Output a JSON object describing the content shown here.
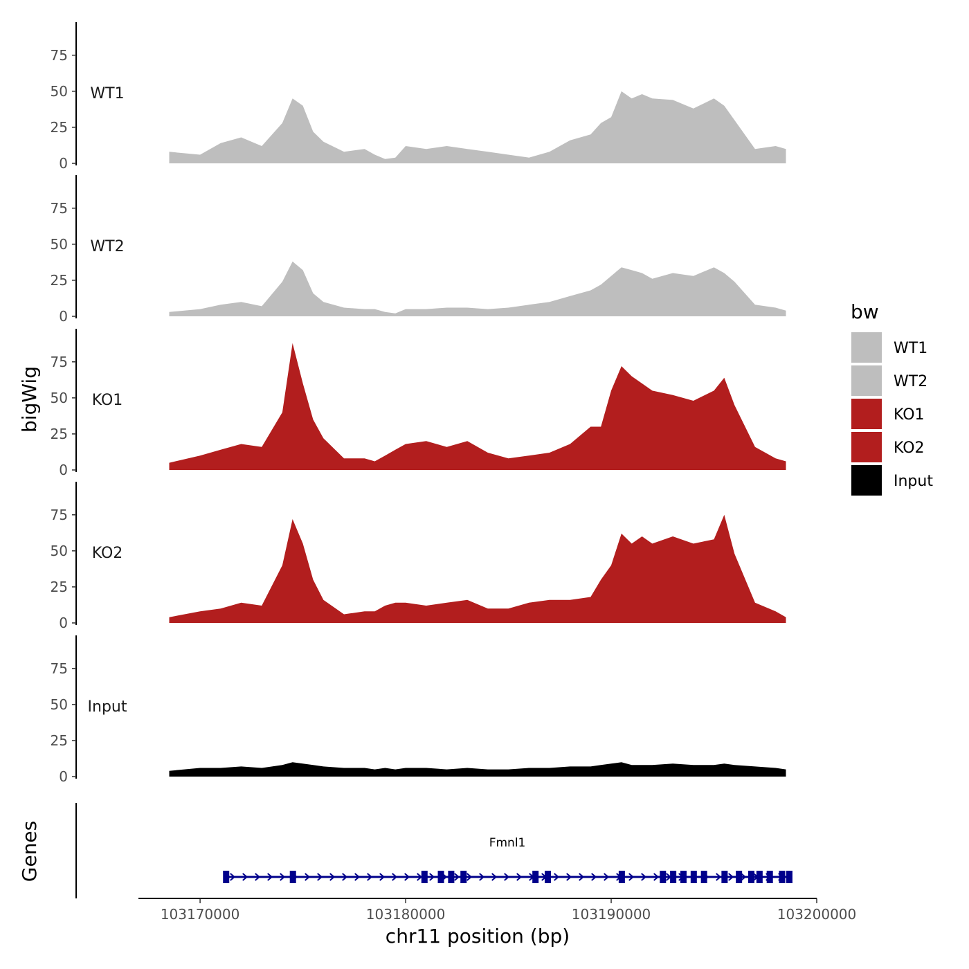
{
  "chart_data": {
    "type": "area",
    "xlabel": "chr11 position (bp)",
    "ylabel": "bigWig",
    "xlim": [
      103167000,
      103200000
    ],
    "x_ticks": [
      103170000,
      103180000,
      103190000,
      103200000
    ],
    "x_tick_labels": [
      "103170000",
      "103180000",
      "103190000",
      "103200000"
    ],
    "ylim": [
      0,
      95
    ],
    "y_ticks": [
      0,
      25,
      50,
      75
    ],
    "y_tick_labels": [
      "0",
      "25",
      "50",
      "75"
    ],
    "legend": {
      "title": "bw",
      "position": "right",
      "entries": [
        {
          "label": "WT1",
          "color": "#BEBEBE"
        },
        {
          "label": "WT2",
          "color": "#BEBEBE"
        },
        {
          "label": "KO1",
          "color": "#B21E1E"
        },
        {
          "label": "KO2",
          "color": "#B21E1E"
        },
        {
          "label": "Input",
          "color": "#000000"
        }
      ]
    },
    "tracks": [
      {
        "name": "WT1",
        "color": "#BEBEBE",
        "x": [
          103168500,
          103170000,
          103171000,
          103172000,
          103173000,
          103174000,
          103174500,
          103175000,
          103175500,
          103176000,
          103177000,
          103178000,
          103178500,
          103179000,
          103179500,
          103180000,
          103181000,
          103182000,
          103183000,
          103184000,
          103185000,
          103186000,
          103187000,
          103188000,
          103189000,
          103189500,
          103190000,
          103190500,
          103191000,
          103191500,
          103192000,
          103193000,
          103194000,
          103195000,
          103195500,
          103196000,
          103197000,
          103198000,
          103198500
        ],
        "y": [
          8,
          6,
          14,
          18,
          12,
          28,
          45,
          40,
          22,
          15,
          8,
          10,
          6,
          3,
          4,
          12,
          10,
          12,
          10,
          8,
          6,
          4,
          8,
          16,
          20,
          28,
          32,
          50,
          45,
          48,
          45,
          44,
          38,
          45,
          40,
          30,
          10,
          12,
          10
        ]
      },
      {
        "name": "WT2",
        "color": "#BEBEBE",
        "x": [
          103168500,
          103170000,
          103171000,
          103172000,
          103173000,
          103174000,
          103174500,
          103175000,
          103175500,
          103176000,
          103177000,
          103178000,
          103178500,
          103179000,
          103179500,
          103180000,
          103181000,
          103182000,
          103183000,
          103184000,
          103185000,
          103186000,
          103187000,
          103188000,
          103189000,
          103189500,
          103190000,
          103190500,
          103191000,
          103191500,
          103192000,
          103193000,
          103194000,
          103195000,
          103195500,
          103196000,
          103197000,
          103198000,
          103198500
        ],
        "y": [
          3,
          5,
          8,
          10,
          7,
          24,
          38,
          32,
          16,
          10,
          6,
          5,
          5,
          3,
          2,
          5,
          5,
          6,
          6,
          5,
          6,
          8,
          10,
          14,
          18,
          22,
          28,
          34,
          32,
          30,
          26,
          30,
          28,
          34,
          30,
          24,
          8,
          6,
          4
        ]
      },
      {
        "name": "KO1",
        "color": "#B21E1E",
        "x": [
          103168500,
          103170000,
          103171000,
          103172000,
          103173000,
          103174000,
          103174500,
          103175000,
          103175500,
          103176000,
          103177000,
          103178000,
          103178500,
          103179000,
          103179500,
          103180000,
          103181000,
          103182000,
          103183000,
          103184000,
          103185000,
          103186000,
          103187000,
          103188000,
          103189000,
          103189500,
          103190000,
          103190500,
          103191000,
          103191500,
          103192000,
          103193000,
          103194000,
          103195000,
          103195500,
          103196000,
          103197000,
          103198000,
          103198500
        ],
        "y": [
          5,
          10,
          14,
          18,
          16,
          40,
          88,
          60,
          35,
          22,
          8,
          8,
          6,
          10,
          14,
          18,
          20,
          16,
          20,
          12,
          8,
          10,
          12,
          18,
          30,
          30,
          55,
          72,
          65,
          60,
          55,
          52,
          48,
          55,
          64,
          45,
          16,
          8,
          6
        ]
      },
      {
        "name": "KO2",
        "color": "#B21E1E",
        "x": [
          103168500,
          103170000,
          103171000,
          103172000,
          103173000,
          103174000,
          103174500,
          103175000,
          103175500,
          103176000,
          103177000,
          103178000,
          103178500,
          103179000,
          103179500,
          103180000,
          103181000,
          103182000,
          103183000,
          103184000,
          103185000,
          103186000,
          103187000,
          103188000,
          103189000,
          103189500,
          103190000,
          103190500,
          103191000,
          103191500,
          103192000,
          103193000,
          103194000,
          103195000,
          103195500,
          103196000,
          103197000,
          103198000,
          103198500
        ],
        "y": [
          4,
          8,
          10,
          14,
          12,
          40,
          72,
          55,
          30,
          16,
          6,
          8,
          8,
          12,
          14,
          14,
          12,
          14,
          16,
          10,
          10,
          14,
          16,
          16,
          18,
          30,
          40,
          62,
          55,
          60,
          55,
          60,
          55,
          58,
          75,
          48,
          14,
          8,
          4
        ]
      },
      {
        "name": "Input",
        "color": "#000000",
        "x": [
          103168500,
          103170000,
          103171000,
          103172000,
          103173000,
          103174000,
          103174500,
          103175000,
          103175500,
          103176000,
          103177000,
          103178000,
          103178500,
          103179000,
          103179500,
          103180000,
          103181000,
          103182000,
          103183000,
          103184000,
          103185000,
          103186000,
          103187000,
          103188000,
          103189000,
          103189500,
          103190000,
          103190500,
          103191000,
          103191500,
          103192000,
          103193000,
          103194000,
          103195000,
          103195500,
          103196000,
          103197000,
          103198000,
          103198500
        ],
        "y": [
          4,
          6,
          6,
          7,
          6,
          8,
          10,
          9,
          8,
          7,
          6,
          6,
          5,
          6,
          5,
          6,
          6,
          5,
          6,
          5,
          5,
          6,
          6,
          7,
          7,
          8,
          9,
          10,
          8,
          8,
          8,
          9,
          8,
          8,
          9,
          8,
          7,
          6,
          5
        ]
      }
    ],
    "genes": {
      "panel_label": "Genes",
      "name": "Fmnl1",
      "strand": "+",
      "start": 103171200,
      "end": 103198700,
      "exons": [
        103171250,
        103174500,
        103180900,
        103181700,
        103182200,
        103182800,
        103186300,
        103186900,
        103190500,
        103192500,
        103193000,
        103193500,
        103194000,
        103194500,
        103195500,
        103196200,
        103196800,
        103197200,
        103197700,
        103198300,
        103198650
      ]
    }
  }
}
